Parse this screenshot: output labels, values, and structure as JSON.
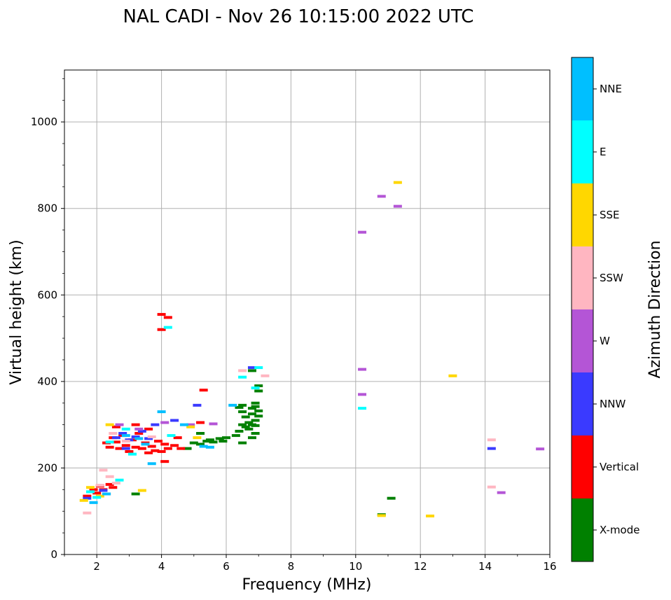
{
  "chart_data": {
    "type": "scatter",
    "title": "NAL CADI - Nov 26 10:15:00 2022 UTC",
    "xlabel": "Frequency (MHz)",
    "ylabel": "Virtual height (km)",
    "xlim": [
      1,
      16
    ],
    "ylim": [
      0,
      1120
    ],
    "xticks": [
      2,
      4,
      6,
      8,
      10,
      12,
      14,
      16
    ],
    "yticks": [
      0,
      200,
      400,
      600,
      800,
      1000
    ],
    "grid": true,
    "colorbar": {
      "label": "Azimuth Direction",
      "position": "right",
      "categories": [
        {
          "name": "X-mode",
          "color": "#008000"
        },
        {
          "name": "Vertical",
          "color": "#ff0000"
        },
        {
          "name": "NNW",
          "color": "#3a3aff"
        },
        {
          "name": "W",
          "color": "#b455d6"
        },
        {
          "name": "SSW",
          "color": "#ffb6c1"
        },
        {
          "name": "SSE",
          "color": "#ffd700"
        },
        {
          "name": "E",
          "color": "#00ffff"
        },
        {
          "name": "NNE",
          "color": "#00bfff"
        }
      ]
    },
    "series": [
      {
        "name": "X-mode",
        "points": [
          [
            5.0,
            258
          ],
          [
            5.2,
            255
          ],
          [
            5.4,
            262
          ],
          [
            5.5,
            265
          ],
          [
            5.6,
            260
          ],
          [
            5.8,
            268
          ],
          [
            5.9,
            262
          ],
          [
            6.0,
            270
          ],
          [
            6.3,
            275
          ],
          [
            6.4,
            285
          ],
          [
            6.5,
            258
          ],
          [
            6.5,
            300
          ],
          [
            6.6,
            295
          ],
          [
            6.7,
            290
          ],
          [
            6.7,
            305
          ],
          [
            6.8,
            300
          ],
          [
            6.8,
            325
          ],
          [
            6.9,
            298
          ],
          [
            6.9,
            310
          ],
          [
            6.9,
            350
          ],
          [
            6.8,
            338
          ],
          [
            6.9,
            342
          ],
          [
            7.0,
            320
          ],
          [
            7.0,
            332
          ],
          [
            6.8,
            270
          ],
          [
            6.9,
            280
          ],
          [
            6.8,
            425
          ],
          [
            6.5,
            330
          ],
          [
            6.5,
            345
          ],
          [
            7.0,
            390
          ],
          [
            7.0,
            378
          ],
          [
            3.2,
            140
          ],
          [
            4.8,
            245
          ],
          [
            5.2,
            280
          ],
          [
            6.6,
            318
          ],
          [
            6.4,
            340
          ],
          [
            10.8,
            92
          ],
          [
            11.1,
            130
          ]
        ]
      },
      {
        "name": "Vertical",
        "points": [
          [
            1.7,
            135
          ],
          [
            1.9,
            150
          ],
          [
            2.0,
            142
          ],
          [
            2.1,
            158
          ],
          [
            2.2,
            150
          ],
          [
            2.3,
            140
          ],
          [
            2.4,
            162
          ],
          [
            2.5,
            155
          ],
          [
            2.3,
            258
          ],
          [
            2.4,
            248
          ],
          [
            2.5,
            270
          ],
          [
            2.6,
            260
          ],
          [
            2.7,
            245
          ],
          [
            2.8,
            275
          ],
          [
            2.9,
            252
          ],
          [
            3.0,
            238
          ],
          [
            3.1,
            265
          ],
          [
            3.2,
            248
          ],
          [
            3.3,
            280
          ],
          [
            3.4,
            245
          ],
          [
            3.5,
            258
          ],
          [
            3.6,
            235
          ],
          [
            3.7,
            250
          ],
          [
            3.8,
            240
          ],
          [
            3.9,
            262
          ],
          [
            4.0,
            238
          ],
          [
            4.1,
            255
          ],
          [
            4.2,
            245
          ],
          [
            4.4,
            252
          ],
          [
            4.5,
            270
          ],
          [
            4.1,
            215
          ],
          [
            3.6,
            290
          ],
          [
            3.2,
            300
          ],
          [
            2.6,
            295
          ],
          [
            5.3,
            380
          ],
          [
            4.0,
            520
          ],
          [
            4.0,
            555
          ],
          [
            4.2,
            548
          ],
          [
            5.2,
            305
          ],
          [
            4.6,
            245
          ]
        ]
      },
      {
        "name": "NNW",
        "points": [
          [
            2.6,
            270
          ],
          [
            2.8,
            280
          ],
          [
            3.0,
            265
          ],
          [
            3.2,
            272
          ],
          [
            3.4,
            285
          ],
          [
            3.6,
            268
          ],
          [
            2.9,
            245
          ],
          [
            5.1,
            345
          ],
          [
            6.8,
            432
          ],
          [
            14.2,
            245
          ],
          [
            1.7,
            130
          ],
          [
            2.2,
            148
          ],
          [
            4.4,
            310
          ],
          [
            3.8,
            300
          ]
        ]
      },
      {
        "name": "W",
        "points": [
          [
            10.2,
            745
          ],
          [
            10.8,
            828
          ],
          [
            11.3,
            805
          ],
          [
            10.2,
            428
          ],
          [
            10.2,
            370
          ],
          [
            15.7,
            244
          ],
          [
            14.5,
            143
          ],
          [
            2.7,
            300
          ],
          [
            3.3,
            290
          ],
          [
            4.1,
            305
          ],
          [
            4.9,
            300
          ],
          [
            5.6,
            302
          ]
        ]
      },
      {
        "name": "SSW",
        "points": [
          [
            14.2,
            156
          ],
          [
            14.2,
            265
          ],
          [
            2.2,
            195
          ],
          [
            2.4,
            180
          ],
          [
            2.6,
            165
          ],
          [
            2.1,
            160
          ],
          [
            2.5,
            280
          ],
          [
            2.9,
            262
          ],
          [
            3.7,
            272
          ],
          [
            6.5,
            425
          ],
          [
            7.2,
            413
          ],
          [
            1.7,
            96
          ]
        ]
      },
      {
        "name": "SSE",
        "points": [
          [
            11.3,
            860
          ],
          [
            13.0,
            413
          ],
          [
            10.8,
            90
          ],
          [
            12.3,
            89
          ],
          [
            1.6,
            125
          ],
          [
            1.8,
            155
          ],
          [
            2.1,
            135
          ],
          [
            2.4,
            300
          ],
          [
            3.4,
            148
          ],
          [
            5.1,
            270
          ],
          [
            4.9,
            295
          ]
        ]
      },
      {
        "name": "E",
        "points": [
          [
            10.2,
            338
          ],
          [
            6.9,
            385
          ],
          [
            7.0,
            432
          ],
          [
            4.2,
            525
          ],
          [
            2.7,
            172
          ],
          [
            2.4,
            260
          ],
          [
            2.9,
            290
          ],
          [
            3.1,
            232
          ],
          [
            4.3,
            275
          ],
          [
            1.8,
            145
          ],
          [
            2.0,
            132
          ],
          [
            6.5,
            410
          ]
        ]
      },
      {
        "name": "NNE",
        "points": [
          [
            3.7,
            210
          ],
          [
            4.7,
            300
          ],
          [
            5.3,
            250
          ],
          [
            3.5,
            255
          ],
          [
            2.9,
            275
          ],
          [
            6.2,
            345
          ],
          [
            2.3,
            140
          ],
          [
            1.9,
            120
          ],
          [
            5.5,
            248
          ],
          [
            4.0,
            330
          ],
          [
            3.3,
            268
          ]
        ]
      }
    ]
  }
}
